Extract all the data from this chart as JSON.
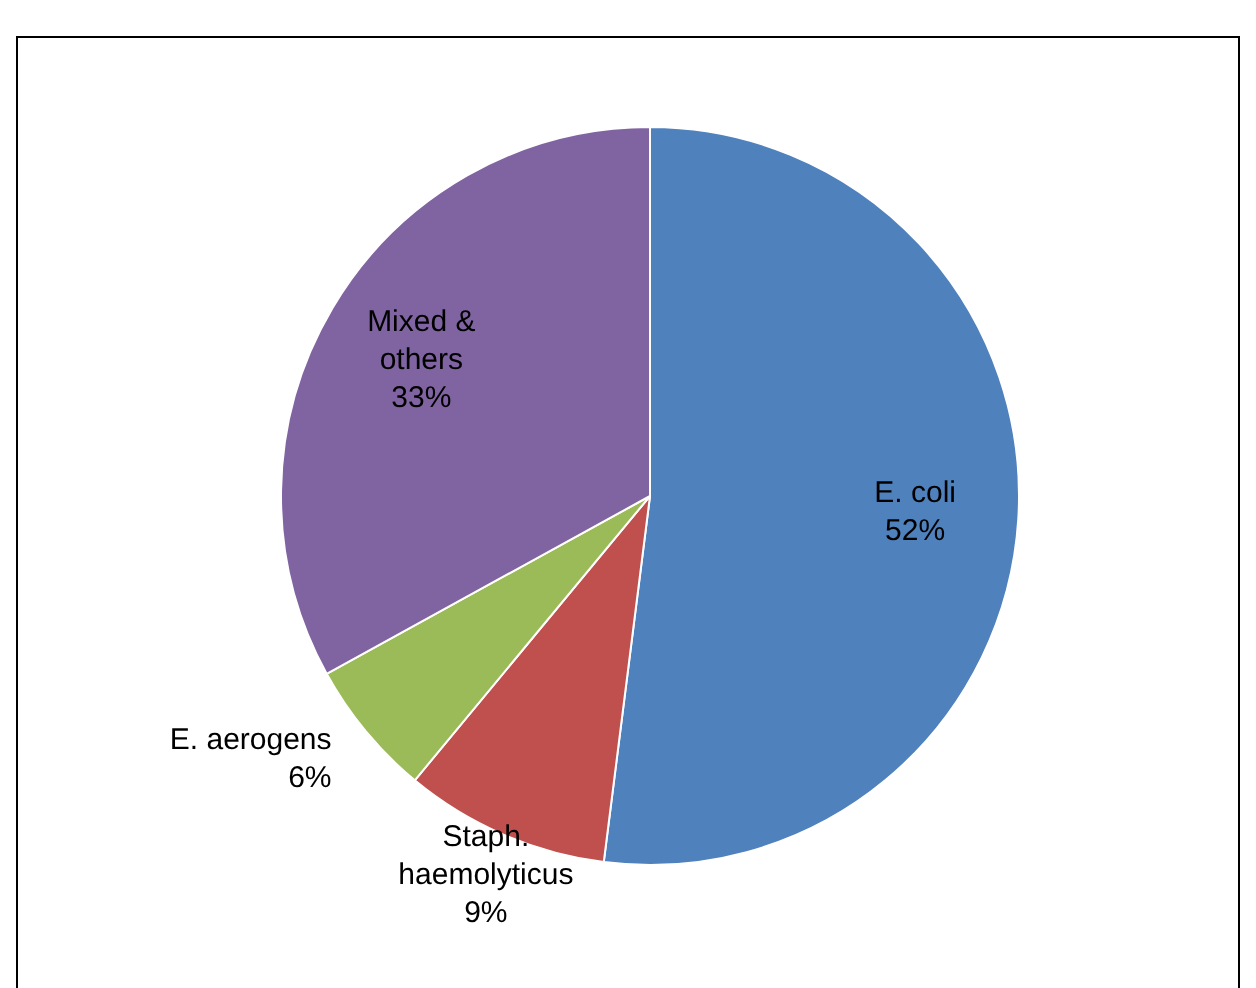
{
  "chart_data": {
    "type": "pie",
    "categories": [
      "E. coli",
      "Staph. haemolyticus",
      "E. aerogens",
      "Mixed & others"
    ],
    "values": [
      52,
      9,
      6,
      33
    ],
    "colors": [
      "#4f81bd",
      "#c0504d",
      "#9bbb59",
      "#8064a2"
    ],
    "value_labels": [
      "52%",
      "9%",
      "6%",
      "33%"
    ],
    "legend": false
  }
}
